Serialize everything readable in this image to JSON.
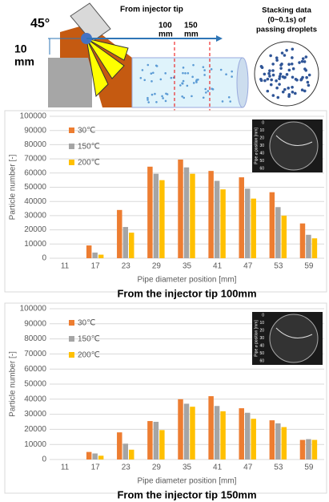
{
  "diagram": {
    "angle": "45°",
    "depth": [
      "10",
      "mm"
    ],
    "origin": "From injector tip",
    "pos1": [
      "100",
      "mm"
    ],
    "pos2": [
      "150",
      "mm"
    ],
    "stack": [
      "Stacking data",
      "(0~0.1s) of",
      "passing droplets"
    ]
  },
  "chart_data": [
    {
      "type": "bar",
      "caption": "From the injector tip 100mm",
      "xlabel": "Pipe diameter position [mm]",
      "ylabel": "Particle number [-]",
      "categories": [
        "11",
        "17",
        "23",
        "29",
        "35",
        "41",
        "47",
        "53",
        "59"
      ],
      "series": [
        {
          "name": "30℃",
          "color": "#ed7d31",
          "values": [
            0,
            9000,
            34000,
            64500,
            69500,
            61500,
            57000,
            46500,
            24500
          ]
        },
        {
          "name": "150℃",
          "color": "#a5a5a5",
          "values": [
            0,
            4000,
            22000,
            59500,
            64000,
            54500,
            49000,
            36000,
            16500
          ]
        },
        {
          "name": "200℃",
          "color": "#ffc000",
          "values": [
            0,
            2500,
            18000,
            55000,
            59500,
            48500,
            42000,
            30000,
            14000
          ]
        }
      ],
      "ylim": [
        0,
        100000
      ],
      "yticks": [
        0,
        10000,
        20000,
        30000,
        40000,
        50000,
        60000,
        70000,
        80000,
        90000,
        100000
      ],
      "legend": "upper-left",
      "inset_ylabel": "Pipe ⌀ position [mm]",
      "inset_ticks": [
        "0",
        "10",
        "20",
        "30",
        "40",
        "50",
        "60"
      ]
    },
    {
      "type": "bar",
      "caption": "From the injector tip 150mm",
      "xlabel": "Pipe diameter position [mm]",
      "ylabel": "Particle number [-]",
      "categories": [
        "11",
        "17",
        "23",
        "29",
        "35",
        "41",
        "47",
        "53",
        "59"
      ],
      "series": [
        {
          "name": "30℃",
          "color": "#ed7d31",
          "values": [
            0,
            5000,
            18000,
            25500,
            40000,
            42000,
            34000,
            26000,
            13000
          ]
        },
        {
          "name": "150℃",
          "color": "#a5a5a5",
          "values": [
            0,
            4000,
            10500,
            25000,
            37000,
            35500,
            31000,
            24000,
            13500
          ]
        },
        {
          "name": "200℃",
          "color": "#ffc000",
          "values": [
            0,
            2500,
            6500,
            19500,
            35000,
            32000,
            27000,
            21500,
            13000
          ]
        }
      ],
      "ylim": [
        0,
        100000
      ],
      "yticks": [
        0,
        10000,
        20000,
        30000,
        40000,
        50000,
        60000,
        70000,
        80000,
        90000,
        100000
      ],
      "legend": "upper-left",
      "inset_ylabel": "Pipe ⌀ position [mm]",
      "inset_ticks": [
        "0",
        "10",
        "20",
        "30",
        "40",
        "50",
        "60"
      ]
    }
  ]
}
